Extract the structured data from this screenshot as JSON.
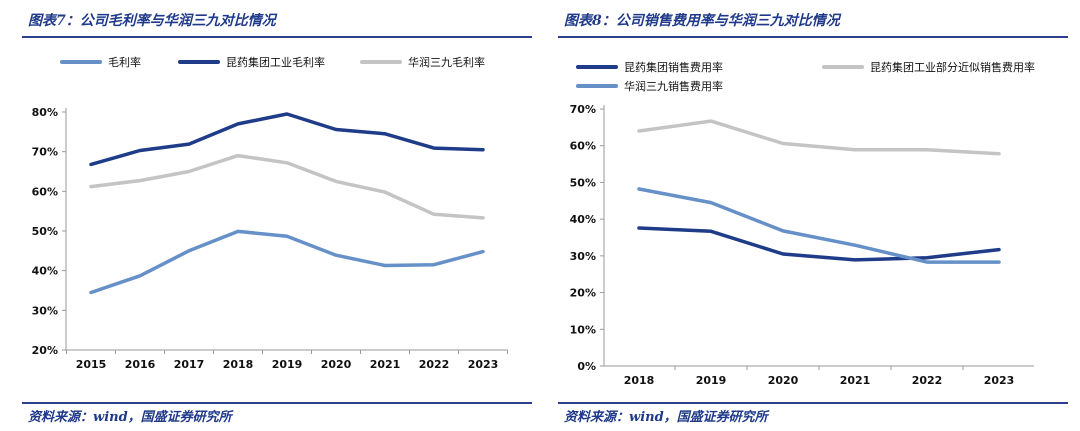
{
  "colors": {
    "dark_blue": "#1f3c88",
    "mid_blue": "#6590c8",
    "light_gray": "#c4c4c4",
    "title": "#1f3a8a"
  },
  "panels": [
    {
      "title": "图表7：公司毛利率与华润三九对比情况",
      "source": "资料来源：wind，国盛证券研究所"
    },
    {
      "title": "图表8：公司销售费用率与华润三九对比情况",
      "source": "资料来源：wind，国盛证券研究所"
    }
  ],
  "chart_data": [
    {
      "type": "line",
      "title": "",
      "xlabel": "",
      "ylabel": "",
      "x": [
        "2015",
        "2016",
        "2017",
        "2018",
        "2019",
        "2020",
        "2021",
        "2022",
        "2023"
      ],
      "ylim": [
        20,
        80
      ],
      "yticks": [
        20,
        30,
        40,
        50,
        60,
        70,
        80
      ],
      "ytick_labels": [
        "20%",
        "30%",
        "40%",
        "50%",
        "60%",
        "70%",
        "80%"
      ],
      "grid": false,
      "legend_position": "top",
      "series": [
        {
          "name": "毛利率",
          "color": "#6590c8",
          "values": [
            34.5,
            38.7,
            45.0,
            49.9,
            48.7,
            43.9,
            41.3,
            41.5,
            44.8
          ]
        },
        {
          "name": "昆药集团工业毛利率",
          "color": "#1f3c88",
          "values": [
            66.8,
            70.3,
            71.9,
            77.0,
            79.5,
            75.6,
            74.5,
            70.9,
            70.5
          ]
        },
        {
          "name": "华润三九毛利率",
          "color": "#c4c4c4",
          "values": [
            61.2,
            62.7,
            65.0,
            69.0,
            67.2,
            62.5,
            59.8,
            54.2,
            53.3
          ]
        }
      ]
    },
    {
      "type": "line",
      "title": "",
      "xlabel": "",
      "ylabel": "",
      "x": [
        "2018",
        "2019",
        "2020",
        "2021",
        "2022",
        "2023"
      ],
      "ylim": [
        0,
        70
      ],
      "yticks": [
        0,
        10,
        20,
        30,
        40,
        50,
        60,
        70
      ],
      "ytick_labels": [
        "0%",
        "10%",
        "20%",
        "30%",
        "40%",
        "50%",
        "60%",
        "70%"
      ],
      "grid": false,
      "legend_position": "top",
      "series": [
        {
          "name": "昆药集团销售费用率",
          "color": "#1f3c88",
          "values": [
            37.6,
            36.7,
            30.5,
            28.9,
            29.5,
            31.7
          ]
        },
        {
          "name": "昆药集团工业部分近似销售费用率",
          "color": "#c4c4c4",
          "values": [
            64.0,
            66.7,
            60.6,
            58.9,
            58.9,
            57.8
          ]
        },
        {
          "name": "华润三九销售费用率",
          "color": "#6590c8",
          "values": [
            48.2,
            44.5,
            36.8,
            32.9,
            28.3,
            28.3
          ]
        }
      ]
    }
  ]
}
